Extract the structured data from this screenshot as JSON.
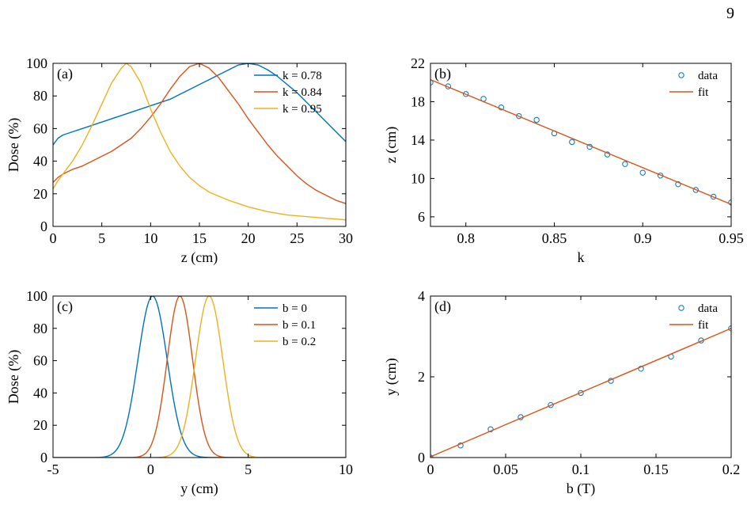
{
  "page_number": "9",
  "colors": {
    "blue": "#0072BD",
    "orange": "#D95319",
    "yellow": "#EDB120",
    "axis": "#000000"
  },
  "chart_data": [
    {
      "panel": "(a)",
      "type": "line",
      "xlabel": "z (cm)",
      "ylabel": "Dose  (%)",
      "xlim": [
        0,
        30
      ],
      "ylim": [
        0,
        100
      ],
      "xticks": [
        0,
        5,
        10,
        15,
        20,
        25,
        30
      ],
      "yticks": [
        0,
        20,
        40,
        60,
        80,
        100
      ],
      "grid": false,
      "legend_position": "top-right",
      "series": [
        {
          "name": "k = 0.78",
          "color": "#0072BD",
          "x": [
            0,
            0.5,
            1,
            2,
            3,
            4,
            5,
            6,
            7,
            8,
            9,
            10,
            11,
            12,
            13,
            14,
            15,
            16,
            17,
            18,
            19,
            20,
            21,
            22,
            23,
            24,
            25,
            26,
            27,
            28,
            29,
            30
          ],
          "y": [
            50,
            54,
            56,
            58,
            60,
            62,
            64,
            66,
            68,
            70,
            72,
            74,
            76,
            78,
            81,
            84,
            87,
            90,
            93,
            96,
            99,
            100,
            99,
            96,
            92,
            87,
            82,
            76,
            70,
            64,
            58,
            52
          ]
        },
        {
          "name": "k = 0.84",
          "color": "#D95319",
          "x": [
            0,
            0.5,
            1,
            2,
            3,
            4,
            5,
            6,
            7,
            8,
            9,
            10,
            11,
            12,
            13,
            14,
            15,
            16,
            17,
            18,
            19,
            20,
            21,
            22,
            23,
            24,
            25,
            26,
            27,
            28,
            29,
            30
          ],
          "y": [
            27,
            30,
            32,
            35,
            37,
            40,
            43,
            46,
            50,
            54,
            60,
            67,
            75,
            84,
            92,
            98,
            100,
            97,
            91,
            83,
            75,
            66,
            58,
            50,
            43,
            37,
            31,
            26,
            22,
            19,
            16,
            14
          ]
        },
        {
          "name": "k = 0.95",
          "color": "#EDB120",
          "x": [
            0,
            0.5,
            1,
            2,
            3,
            4,
            5,
            6,
            7,
            7.5,
            8,
            9,
            10,
            11,
            12,
            13,
            14,
            15,
            16,
            18,
            20,
            22,
            24,
            26,
            28,
            30
          ],
          "y": [
            23,
            28,
            32,
            40,
            50,
            62,
            75,
            88,
            97,
            100,
            98,
            88,
            72,
            58,
            46,
            37,
            30,
            25,
            21,
            16,
            12,
            9,
            7,
            6,
            5,
            4
          ]
        }
      ]
    },
    {
      "panel": "(b)",
      "type": "scatter",
      "xlabel": "k",
      "ylabel": "z (cm)",
      "xlim": [
        0.78,
        0.95
      ],
      "ylim": [
        5,
        22
      ],
      "xticks": [
        0.8,
        0.85,
        0.9,
        0.95
      ],
      "yticks": [
        6,
        10,
        14,
        18,
        22
      ],
      "grid": false,
      "legend_position": "top-right",
      "series": [
        {
          "name": "data",
          "style": "marker",
          "color": "#0072BD",
          "x": [
            0.78,
            0.79,
            0.8,
            0.81,
            0.82,
            0.83,
            0.84,
            0.85,
            0.86,
            0.87,
            0.88,
            0.89,
            0.9,
            0.91,
            0.92,
            0.93,
            0.94,
            0.95
          ],
          "y": [
            20.0,
            19.6,
            18.8,
            18.3,
            17.4,
            16.5,
            16.1,
            14.7,
            13.8,
            13.3,
            12.5,
            11.5,
            10.6,
            10.3,
            9.4,
            8.8,
            8.1,
            7.5
          ]
        },
        {
          "name": "fit",
          "style": "line",
          "color": "#D95319",
          "x": [
            0.78,
            0.95
          ],
          "y": [
            20.3,
            7.3
          ]
        }
      ]
    },
    {
      "panel": "(c)",
      "type": "line",
      "xlabel": "y (cm)",
      "ylabel": "Dose (%)",
      "xlim": [
        -5,
        10
      ],
      "ylim": [
        0,
        100
      ],
      "xticks": [
        -5,
        0,
        5,
        10
      ],
      "yticks": [
        0,
        20,
        40,
        60,
        80,
        100
      ],
      "grid": false,
      "legend_position": "top-right",
      "series": [
        {
          "name": "b = 0",
          "color": "#0072BD",
          "shape": "gaussian",
          "center": 0.1,
          "peak": 100,
          "sigma": 0.75
        },
        {
          "name": "b = 0.1",
          "color": "#D95319",
          "shape": "gaussian",
          "center": 1.5,
          "peak": 100,
          "sigma": 0.65
        },
        {
          "name": "b = 0.2",
          "color": "#EDB120",
          "shape": "gaussian",
          "center": 3.0,
          "peak": 100,
          "sigma": 0.7
        }
      ]
    },
    {
      "panel": "(d)",
      "type": "scatter",
      "xlabel": "b (T)",
      "ylabel": "y (cm)",
      "xlim": [
        0,
        0.2
      ],
      "ylim": [
        0,
        4
      ],
      "xticks": [
        0,
        0.05,
        0.1,
        0.15,
        0.2
      ],
      "yticks": [
        0,
        2,
        4
      ],
      "grid": false,
      "legend_position": "top-right",
      "series": [
        {
          "name": "data",
          "style": "marker",
          "color": "#0072BD",
          "x": [
            0,
            0.02,
            0.04,
            0.06,
            0.08,
            0.1,
            0.12,
            0.14,
            0.16,
            0.18,
            0.2
          ],
          "y": [
            0.0,
            0.3,
            0.7,
            1.0,
            1.3,
            1.6,
            1.9,
            2.2,
            2.5,
            2.9,
            3.2
          ]
        },
        {
          "name": "fit",
          "style": "line",
          "color": "#D95319",
          "x": [
            0,
            0.2
          ],
          "y": [
            0.02,
            3.2
          ]
        }
      ]
    }
  ]
}
